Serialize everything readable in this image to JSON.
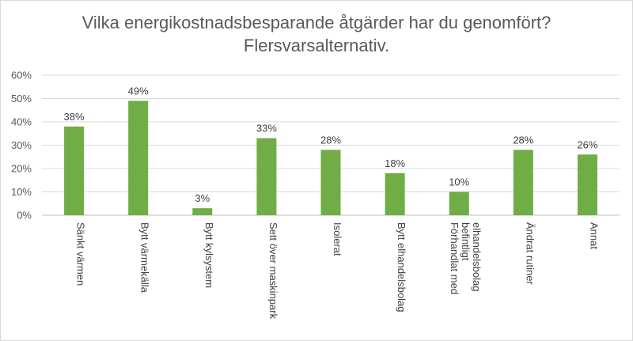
{
  "chart_data": {
    "type": "bar",
    "title": [
      "Vilka energikostnadsbesparande åtgärder har du genomfört?",
      "Flersvarsalternativ."
    ],
    "categories": [
      [
        "Sänkt värmen"
      ],
      [
        "Bytt värmekälla"
      ],
      [
        "Bytt kylsystem"
      ],
      [
        "Sett över maskinpark"
      ],
      [
        "Isolerat"
      ],
      [
        "Bytt elhandelsbolag"
      ],
      [
        "Förhandlat med",
        "befintligt",
        "elhandelsbolag"
      ],
      [
        "Ändrat rutiner"
      ],
      [
        "Annat"
      ]
    ],
    "values": [
      38,
      49,
      3,
      33,
      28,
      18,
      10,
      28,
      26
    ],
    "data_labels": [
      "38%",
      "49%",
      "3%",
      "33%",
      "28%",
      "18%",
      "10%",
      "28%",
      "26%"
    ],
    "y_ticks": [
      "0%",
      "10%",
      "20%",
      "30%",
      "40%",
      "50%",
      "60%"
    ],
    "ylim": [
      0,
      60
    ],
    "grid": true,
    "legend": "none",
    "bar_color": "#70ad47",
    "grid_color": "#d9d9d9"
  }
}
